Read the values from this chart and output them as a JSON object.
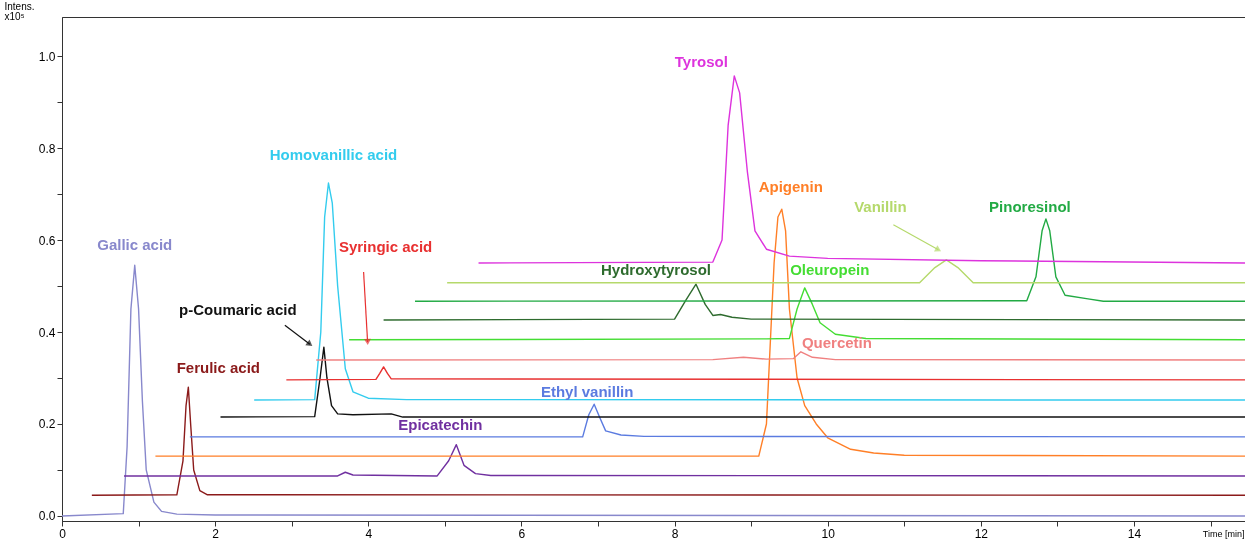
{
  "chart_data": {
    "type": "line",
    "xlabel": "Time [min]",
    "ylabel": "Intens. x10⁵",
    "xlim": [
      0,
      15.45
    ],
    "ylim": [
      -0.011,
      1.085
    ],
    "xticks": [
      0,
      {
        "value": 1,
        "label": null
      },
      2,
      {
        "value": 3,
        "label": null
      },
      4,
      {
        "value": 5,
        "label": null
      },
      6,
      {
        "value": 7,
        "label": null
      },
      8,
      {
        "value": 9,
        "label": null
      },
      10,
      {
        "value": 11,
        "label": null
      },
      12,
      {
        "value": 13,
        "label": null
      },
      14,
      {
        "value": 15,
        "label": null
      }
    ],
    "yticks": [
      {
        "value": 0,
        "label": "0.0"
      },
      {
        "value": 0.1,
        "label": null
      },
      {
        "value": 0.2,
        "label": "0.2"
      },
      {
        "value": 0.3,
        "label": null
      },
      {
        "value": 0.4,
        "label": "0.4"
      },
      {
        "value": 0.5,
        "label": null
      },
      {
        "value": 0.6,
        "label": "0.6"
      },
      {
        "value": 0.7,
        "label": null
      },
      {
        "value": 0.8,
        "label": "0.8"
      },
      {
        "value": 0.9,
        "label": null
      },
      {
        "value": 1.0,
        "label": "1.0"
      }
    ],
    "grid": false,
    "marker": "none",
    "line_style": "solid",
    "series": [
      {
        "name": "Gallic acid",
        "color": "#8888cc",
        "x": [
          0,
          0.8,
          0.85,
          0.9,
          0.95,
          1.0,
          1.05,
          1.1,
          1.2,
          1.3,
          1.5,
          2,
          15.45
        ],
        "values": [
          0,
          0.005,
          0.15,
          0.45,
          0.545,
          0.45,
          0.25,
          0.1,
          0.03,
          0.01,
          0.004,
          0.002,
          0
        ]
      },
      {
        "name": "Ferulic acid",
        "color": "#8b1a1a",
        "x": [
          0.39,
          1.5,
          1.58,
          1.62,
          1.65,
          1.68,
          1.72,
          1.8,
          1.9,
          15.45
        ],
        "values": [
          0.045,
          0.046,
          0.12,
          0.24,
          0.28,
          0.2,
          0.1,
          0.055,
          0.046,
          0.045
        ]
      },
      {
        "name": "Epicatechin",
        "color": "#7030a0",
        "x": [
          0.81,
          3.6,
          3.7,
          3.8,
          4.9,
          5.05,
          5.15,
          5.25,
          5.4,
          5.6,
          15.45
        ],
        "values": [
          0.087,
          0.087,
          0.095,
          0.089,
          0.087,
          0.12,
          0.155,
          0.11,
          0.092,
          0.088,
          0.087
        ]
      },
      {
        "name": "Apigenin",
        "color": "#ff7f27",
        "x": [
          1.22,
          9.1,
          9.2,
          9.3,
          9.35,
          9.4,
          9.45,
          9.5,
          9.6,
          9.7,
          9.85,
          10.0,
          10.3,
          10.6,
          11,
          15.45
        ],
        "values": [
          0.13,
          0.13,
          0.2,
          0.55,
          0.65,
          0.667,
          0.62,
          0.45,
          0.3,
          0.24,
          0.2,
          0.17,
          0.145,
          0.137,
          0.132,
          0.13
        ]
      },
      {
        "name": "Ethyl vanillin",
        "color": "#5b7be0",
        "x": [
          1.67,
          6.8,
          6.88,
          6.95,
          7.02,
          7.1,
          7.3,
          7.6,
          15.45
        ],
        "values": [
          0.172,
          0.172,
          0.22,
          0.243,
          0.215,
          0.185,
          0.176,
          0.173,
          0.172
        ]
      },
      {
        "name": "p-Coumaric acid",
        "color": "#111111",
        "x": [
          2.07,
          3.3,
          3.37,
          3.42,
          3.46,
          3.52,
          3.6,
          3.8,
          4.3,
          4.45,
          15.45
        ],
        "values": [
          0.215,
          0.216,
          0.3,
          0.367,
          0.3,
          0.24,
          0.222,
          0.22,
          0.222,
          0.215,
          0.215
        ]
      },
      {
        "name": "Homovanillic acid",
        "color": "#33ccee",
        "x": [
          2.51,
          3.3,
          3.38,
          3.43,
          3.48,
          3.53,
          3.6,
          3.7,
          3.8,
          4.0,
          4.5,
          15.45
        ],
        "values": [
          0.252,
          0.253,
          0.4,
          0.65,
          0.724,
          0.68,
          0.5,
          0.32,
          0.27,
          0.256,
          0.253,
          0.252
        ]
      },
      {
        "name": "Syringic acid",
        "color": "#e83030",
        "x": [
          2.93,
          4.1,
          4.15,
          4.2,
          4.25,
          4.3,
          15.45
        ],
        "values": [
          0.296,
          0.297,
          0.31,
          0.324,
          0.31,
          0.298,
          0.296
        ]
      },
      {
        "name": "Quercetin",
        "color": "#f08080",
        "x": [
          3.32,
          8.5,
          8.9,
          9.2,
          9.55,
          9.65,
          9.8,
          10.1,
          15.45
        ],
        "values": [
          0.339,
          0.34,
          0.345,
          0.341,
          0.342,
          0.357,
          0.345,
          0.34,
          0.339
        ]
      },
      {
        "name": "Oleuropein",
        "color": "#44dd33",
        "x": [
          3.75,
          9.2,
          9.5,
          9.6,
          9.7,
          9.8,
          9.9,
          10.1,
          10.5,
          15.45
        ],
        "values": [
          0.383,
          0.385,
          0.386,
          0.45,
          0.496,
          0.46,
          0.42,
          0.395,
          0.386,
          0.383
        ]
      },
      {
        "name": "Hydroxytyrosol",
        "color": "#2e6b2e",
        "x": [
          4.2,
          8.0,
          8.15,
          8.28,
          8.4,
          8.5,
          8.6,
          8.75,
          9.0,
          15.45
        ],
        "values": [
          0.426,
          0.428,
          0.47,
          0.504,
          0.46,
          0.436,
          0.438,
          0.432,
          0.428,
          0.426
        ]
      },
      {
        "name": "Pinoresinol",
        "color": "#22aa44",
        "x": [
          4.61,
          12.6,
          12.72,
          12.8,
          12.85,
          12.9,
          12.98,
          13.1,
          13.4,
          13.6,
          15.45
        ],
        "values": [
          0.467,
          0.468,
          0.52,
          0.62,
          0.646,
          0.62,
          0.52,
          0.48,
          0.472,
          0.467,
          0.467
        ]
      },
      {
        "name": "Vanillin",
        "color": "#b5d96b",
        "x": [
          5.03,
          11.2,
          11.4,
          11.55,
          11.7,
          11.9,
          15.45
        ],
        "values": [
          0.507,
          0.507,
          0.54,
          0.557,
          0.54,
          0.507,
          0.507
        ]
      },
      {
        "name": "Tyrosol",
        "color": "#dd33dd",
        "x": [
          5.44,
          8.5,
          8.62,
          8.7,
          8.78,
          8.85,
          8.95,
          9.05,
          9.2,
          9.5,
          10,
          12,
          15.45
        ],
        "values": [
          0.55,
          0.552,
          0.6,
          0.85,
          0.957,
          0.92,
          0.75,
          0.62,
          0.58,
          0.565,
          0.56,
          0.555,
          0.55
        ]
      }
    ]
  }
}
